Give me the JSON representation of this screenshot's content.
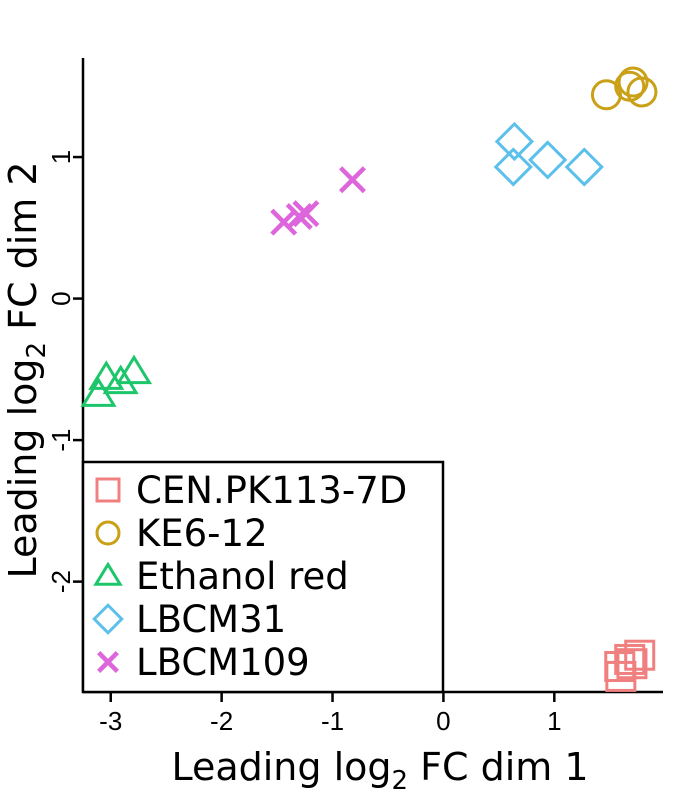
{
  "chart_data": {
    "type": "scatter",
    "title": "",
    "xlabel": {
      "prefix": "Leading log",
      "sub": "2",
      "suffix": " FC dim 1"
    },
    "ylabel": {
      "prefix": "Leading log",
      "sub": "2",
      "suffix": " FC dim 2"
    },
    "xlim": [
      -3.25,
      1.98
    ],
    "ylim": [
      -2.78,
      1.7
    ],
    "x_ticks": [
      -3,
      -2,
      -1,
      0,
      1
    ],
    "x_tick_labels": [
      "-3",
      "-2",
      "-1",
      "0",
      "1"
    ],
    "y_ticks": [
      -2,
      -1,
      0,
      1
    ],
    "y_tick_labels": [
      "-2",
      "-1",
      "0",
      "1"
    ],
    "grid": false,
    "legend_position": "bottom-left",
    "series": [
      {
        "name": "CEN.PK113-7D",
        "marker": "square",
        "color": "#F08080",
        "points": [
          [
            1.59,
            -2.6
          ],
          [
            1.68,
            -2.55
          ],
          [
            1.77,
            -2.52
          ],
          [
            1.6,
            -2.67
          ],
          [
            1.7,
            -2.58
          ]
        ]
      },
      {
        "name": "KE6-12",
        "marker": "circle",
        "color": "#C9A016",
        "points": [
          [
            1.47,
            1.44
          ],
          [
            1.68,
            1.5
          ],
          [
            1.79,
            1.46
          ],
          [
            1.71,
            1.53
          ]
        ]
      },
      {
        "name": "Ethanol red",
        "marker": "triangle",
        "color": "#1DC66A",
        "points": [
          [
            -2.79,
            -0.52
          ],
          [
            -2.91,
            -0.59
          ],
          [
            -3.04,
            -0.56
          ],
          [
            -3.11,
            -0.68
          ]
        ]
      },
      {
        "name": "LBCM31",
        "marker": "diamond",
        "color": "#5BC0EB",
        "points": [
          [
            0.64,
            1.11
          ],
          [
            0.63,
            0.93
          ],
          [
            0.94,
            0.98
          ],
          [
            1.27,
            0.93
          ]
        ]
      },
      {
        "name": "LBCM109",
        "marker": "x",
        "color": "#DD66DD",
        "points": [
          [
            -0.82,
            0.84
          ],
          [
            -1.44,
            0.54
          ],
          [
            -1.3,
            0.58
          ],
          [
            -1.24,
            0.6
          ]
        ]
      }
    ]
  }
}
